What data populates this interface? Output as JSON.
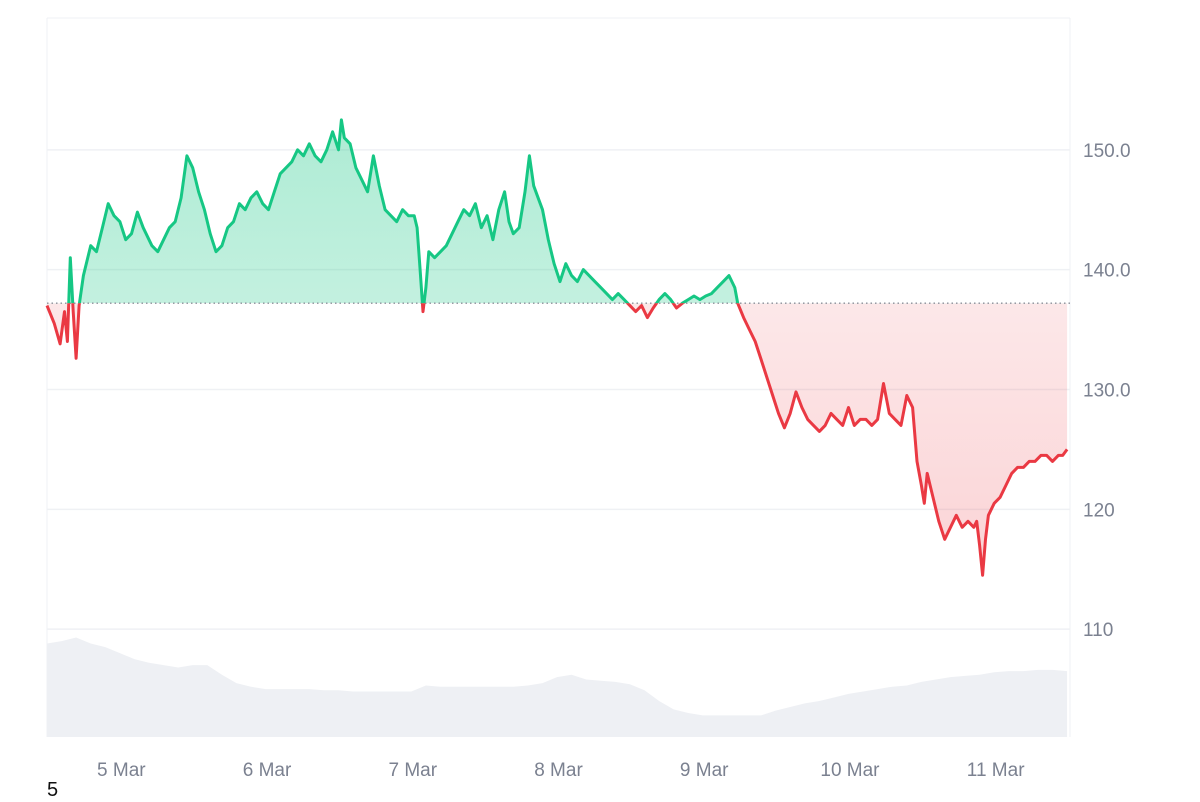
{
  "chart_data": {
    "type": "line",
    "baseline": 137.2,
    "ylim": [
      101,
      161
    ],
    "xlim": [
      0,
      7.02
    ],
    "x_ticks": [
      {
        "x": 0.51,
        "label": "5 Mar"
      },
      {
        "x": 1.51,
        "label": "6 Mar"
      },
      {
        "x": 2.51,
        "label": "7 Mar"
      },
      {
        "x": 3.51,
        "label": "8 Mar"
      },
      {
        "x": 4.51,
        "label": "9 Mar"
      },
      {
        "x": 5.51,
        "label": "10 Mar"
      },
      {
        "x": 6.51,
        "label": "11 Mar"
      }
    ],
    "y_ticks": [
      {
        "value": 150,
        "label": "150.0"
      },
      {
        "value": 140,
        "label": "140.0"
      },
      {
        "value": 130,
        "label": "130.0"
      },
      {
        "value": 120,
        "label": "120"
      },
      {
        "value": 110,
        "label": "110"
      }
    ],
    "colors": {
      "up": "#16c784",
      "down": "#ea3943",
      "volume": "#eef0f4",
      "grid": "#eff1f4",
      "baseline": "#8a8f99",
      "tick": "#7b8190"
    },
    "price": [
      [
        0.0,
        137.0
      ],
      [
        0.05,
        135.5
      ],
      [
        0.09,
        133.8
      ],
      [
        0.12,
        136.5
      ],
      [
        0.14,
        134.0
      ],
      [
        0.16,
        141.0
      ],
      [
        0.18,
        136.5
      ],
      [
        0.2,
        132.6
      ],
      [
        0.22,
        137.0
      ],
      [
        0.25,
        139.5
      ],
      [
        0.3,
        142.0
      ],
      [
        0.34,
        141.5
      ],
      [
        0.38,
        143.5
      ],
      [
        0.42,
        145.5
      ],
      [
        0.46,
        144.5
      ],
      [
        0.5,
        144.0
      ],
      [
        0.54,
        142.5
      ],
      [
        0.58,
        143.0
      ],
      [
        0.62,
        144.8
      ],
      [
        0.66,
        143.5
      ],
      [
        0.72,
        142.0
      ],
      [
        0.76,
        141.5
      ],
      [
        0.8,
        142.5
      ],
      [
        0.84,
        143.5
      ],
      [
        0.88,
        144.0
      ],
      [
        0.92,
        146.0
      ],
      [
        0.96,
        149.5
      ],
      [
        1.0,
        148.5
      ],
      [
        1.04,
        146.5
      ],
      [
        1.08,
        145.0
      ],
      [
        1.12,
        143.0
      ],
      [
        1.16,
        141.5
      ],
      [
        1.2,
        142.0
      ],
      [
        1.24,
        143.5
      ],
      [
        1.28,
        144.0
      ],
      [
        1.32,
        145.5
      ],
      [
        1.36,
        145.0
      ],
      [
        1.4,
        146.0
      ],
      [
        1.44,
        146.5
      ],
      [
        1.48,
        145.5
      ],
      [
        1.52,
        145.0
      ],
      [
        1.56,
        146.5
      ],
      [
        1.6,
        148.0
      ],
      [
        1.64,
        148.5
      ],
      [
        1.68,
        149.0
      ],
      [
        1.72,
        150.0
      ],
      [
        1.76,
        149.5
      ],
      [
        1.8,
        150.5
      ],
      [
        1.84,
        149.5
      ],
      [
        1.88,
        149.0
      ],
      [
        1.92,
        150.0
      ],
      [
        1.96,
        151.5
      ],
      [
        2.0,
        150.0
      ],
      [
        2.02,
        152.5
      ],
      [
        2.04,
        151.0
      ],
      [
        2.08,
        150.5
      ],
      [
        2.12,
        148.5
      ],
      [
        2.16,
        147.5
      ],
      [
        2.2,
        146.5
      ],
      [
        2.24,
        149.5
      ],
      [
        2.28,
        147.0
      ],
      [
        2.32,
        145.0
      ],
      [
        2.36,
        144.5
      ],
      [
        2.4,
        144.0
      ],
      [
        2.44,
        145.0
      ],
      [
        2.48,
        144.5
      ],
      [
        2.52,
        144.5
      ],
      [
        2.54,
        143.5
      ],
      [
        2.56,
        140.0
      ],
      [
        2.58,
        136.5
      ],
      [
        2.6,
        138.5
      ],
      [
        2.62,
        141.5
      ],
      [
        2.66,
        141.0
      ],
      [
        2.7,
        141.5
      ],
      [
        2.74,
        142.0
      ],
      [
        2.78,
        143.0
      ],
      [
        2.82,
        144.0
      ],
      [
        2.86,
        145.0
      ],
      [
        2.9,
        144.5
      ],
      [
        2.94,
        145.5
      ],
      [
        2.98,
        143.5
      ],
      [
        3.02,
        144.5
      ],
      [
        3.06,
        142.5
      ],
      [
        3.1,
        145.0
      ],
      [
        3.14,
        146.5
      ],
      [
        3.17,
        144.0
      ],
      [
        3.2,
        143.0
      ],
      [
        3.24,
        143.5
      ],
      [
        3.28,
        146.5
      ],
      [
        3.31,
        149.5
      ],
      [
        3.34,
        147.0
      ],
      [
        3.37,
        146.0
      ],
      [
        3.4,
        145.0
      ],
      [
        3.44,
        142.5
      ],
      [
        3.48,
        140.5
      ],
      [
        3.52,
        139.0
      ],
      [
        3.56,
        140.5
      ],
      [
        3.6,
        139.5
      ],
      [
        3.64,
        139.0
      ],
      [
        3.68,
        140.0
      ],
      [
        3.72,
        139.5
      ],
      [
        3.76,
        139.0
      ],
      [
        3.8,
        138.5
      ],
      [
        3.84,
        138.0
      ],
      [
        3.88,
        137.5
      ],
      [
        3.92,
        138.0
      ],
      [
        3.96,
        137.5
      ],
      [
        4.0,
        137.0
      ],
      [
        4.04,
        136.5
      ],
      [
        4.08,
        137.0
      ],
      [
        4.12,
        136.0
      ],
      [
        4.16,
        136.8
      ],
      [
        4.2,
        137.5
      ],
      [
        4.24,
        138.0
      ],
      [
        4.28,
        137.5
      ],
      [
        4.32,
        136.8
      ],
      [
        4.36,
        137.2
      ],
      [
        4.4,
        137.5
      ],
      [
        4.44,
        137.8
      ],
      [
        4.48,
        137.5
      ],
      [
        4.52,
        137.8
      ],
      [
        4.56,
        138.0
      ],
      [
        4.6,
        138.5
      ],
      [
        4.64,
        139.0
      ],
      [
        4.68,
        139.5
      ],
      [
        4.72,
        138.5
      ],
      [
        4.74,
        137.2
      ],
      [
        4.78,
        136.0
      ],
      [
        4.82,
        135.0
      ],
      [
        4.86,
        134.0
      ],
      [
        4.9,
        132.5
      ],
      [
        4.94,
        131.0
      ],
      [
        4.98,
        129.5
      ],
      [
        5.02,
        128.0
      ],
      [
        5.06,
        126.8
      ],
      [
        5.1,
        128.0
      ],
      [
        5.14,
        129.8
      ],
      [
        5.18,
        128.5
      ],
      [
        5.22,
        127.5
      ],
      [
        5.26,
        127.0
      ],
      [
        5.3,
        126.5
      ],
      [
        5.34,
        127.0
      ],
      [
        5.38,
        128.0
      ],
      [
        5.42,
        127.5
      ],
      [
        5.46,
        127.0
      ],
      [
        5.5,
        128.5
      ],
      [
        5.54,
        127.0
      ],
      [
        5.58,
        127.5
      ],
      [
        5.62,
        127.5
      ],
      [
        5.66,
        127.0
      ],
      [
        5.7,
        127.5
      ],
      [
        5.74,
        130.5
      ],
      [
        5.78,
        128.0
      ],
      [
        5.82,
        127.5
      ],
      [
        5.86,
        127.0
      ],
      [
        5.9,
        129.5
      ],
      [
        5.94,
        128.5
      ],
      [
        5.97,
        124.0
      ],
      [
        6.0,
        122.0
      ],
      [
        6.02,
        120.5
      ],
      [
        6.04,
        123.0
      ],
      [
        6.08,
        121.0
      ],
      [
        6.12,
        119.0
      ],
      [
        6.16,
        117.5
      ],
      [
        6.2,
        118.5
      ],
      [
        6.24,
        119.5
      ],
      [
        6.28,
        118.5
      ],
      [
        6.32,
        119.0
      ],
      [
        6.36,
        118.5
      ],
      [
        6.38,
        119.0
      ],
      [
        6.4,
        117.0
      ],
      [
        6.42,
        114.5
      ],
      [
        6.44,
        117.5
      ],
      [
        6.46,
        119.5
      ],
      [
        6.5,
        120.5
      ],
      [
        6.54,
        121.0
      ],
      [
        6.58,
        122.0
      ],
      [
        6.62,
        123.0
      ],
      [
        6.66,
        123.5
      ],
      [
        6.7,
        123.5
      ],
      [
        6.74,
        124.0
      ],
      [
        6.78,
        124.0
      ],
      [
        6.82,
        124.5
      ],
      [
        6.86,
        124.5
      ],
      [
        6.9,
        124.0
      ],
      [
        6.94,
        124.5
      ],
      [
        6.97,
        124.5
      ],
      [
        7.0,
        125.0
      ]
    ],
    "volume": [
      [
        0.0,
        108.8
      ],
      [
        0.1,
        109.0
      ],
      [
        0.2,
        109.3
      ],
      [
        0.3,
        108.8
      ],
      [
        0.4,
        108.5
      ],
      [
        0.5,
        108.0
      ],
      [
        0.6,
        107.5
      ],
      [
        0.7,
        107.2
      ],
      [
        0.8,
        107.0
      ],
      [
        0.9,
        106.8
      ],
      [
        1.0,
        107.0
      ],
      [
        1.1,
        107.0
      ],
      [
        1.2,
        106.2
      ],
      [
        1.3,
        105.5
      ],
      [
        1.4,
        105.2
      ],
      [
        1.5,
        105.0
      ],
      [
        1.6,
        105.0
      ],
      [
        1.7,
        105.0
      ],
      [
        1.8,
        105.0
      ],
      [
        1.9,
        104.9
      ],
      [
        2.0,
        104.9
      ],
      [
        2.1,
        104.8
      ],
      [
        2.2,
        104.8
      ],
      [
        2.3,
        104.8
      ],
      [
        2.4,
        104.8
      ],
      [
        2.5,
        104.8
      ],
      [
        2.6,
        105.3
      ],
      [
        2.7,
        105.2
      ],
      [
        2.8,
        105.2
      ],
      [
        2.9,
        105.2
      ],
      [
        3.0,
        105.2
      ],
      [
        3.1,
        105.2
      ],
      [
        3.2,
        105.2
      ],
      [
        3.3,
        105.3
      ],
      [
        3.4,
        105.5
      ],
      [
        3.5,
        106.0
      ],
      [
        3.6,
        106.2
      ],
      [
        3.7,
        105.8
      ],
      [
        3.8,
        105.7
      ],
      [
        3.9,
        105.6
      ],
      [
        4.0,
        105.4
      ],
      [
        4.1,
        104.9
      ],
      [
        4.2,
        104.0
      ],
      [
        4.3,
        103.3
      ],
      [
        4.4,
        103.0
      ],
      [
        4.5,
        102.8
      ],
      [
        4.6,
        102.8
      ],
      [
        4.7,
        102.8
      ],
      [
        4.8,
        102.8
      ],
      [
        4.9,
        102.8
      ],
      [
        5.0,
        103.2
      ],
      [
        5.1,
        103.5
      ],
      [
        5.2,
        103.8
      ],
      [
        5.3,
        104.0
      ],
      [
        5.4,
        104.3
      ],
      [
        5.5,
        104.6
      ],
      [
        5.6,
        104.8
      ],
      [
        5.7,
        105.0
      ],
      [
        5.8,
        105.2
      ],
      [
        5.9,
        105.3
      ],
      [
        6.0,
        105.6
      ],
      [
        6.1,
        105.8
      ],
      [
        6.2,
        106.0
      ],
      [
        6.3,
        106.1
      ],
      [
        6.4,
        106.2
      ],
      [
        6.5,
        106.4
      ],
      [
        6.6,
        106.5
      ],
      [
        6.7,
        106.5
      ],
      [
        6.8,
        106.6
      ],
      [
        6.9,
        106.6
      ],
      [
        7.0,
        106.5
      ]
    ]
  },
  "footer": {
    "corner_label": "5"
  }
}
